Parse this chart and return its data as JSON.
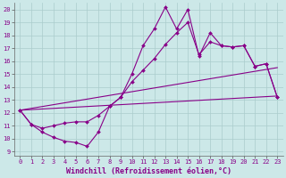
{
  "xlabel": "Windchill (Refroidissement éolien,°C)",
  "bg_color": "#cce8e8",
  "line_color": "#880088",
  "grid_color": "#aacccc",
  "xlim": [
    -0.5,
    23.5
  ],
  "ylim": [
    8.7,
    20.5
  ],
  "xticks": [
    0,
    1,
    2,
    3,
    4,
    5,
    6,
    7,
    8,
    9,
    10,
    11,
    12,
    13,
    14,
    15,
    16,
    17,
    18,
    19,
    20,
    21,
    22,
    23
  ],
  "yticks": [
    9,
    10,
    11,
    12,
    13,
    14,
    15,
    16,
    17,
    18,
    19,
    20
  ],
  "lines": [
    {
      "x": [
        0,
        1,
        2,
        3,
        4,
        5,
        6,
        7,
        8,
        9,
        10,
        11,
        12,
        13,
        14,
        15,
        16,
        17,
        18,
        19,
        20,
        21,
        22,
        23
      ],
      "y": [
        12.2,
        11.1,
        10.5,
        10.1,
        9.8,
        9.7,
        9.4,
        10.5,
        12.5,
        13.2,
        15.0,
        17.2,
        18.5,
        20.2,
        18.5,
        20.0,
        16.4,
        18.2,
        17.2,
        17.1,
        17.2,
        15.6,
        15.8,
        13.2
      ],
      "marker": "D",
      "ms": 2.0,
      "lw": 0.8
    },
    {
      "x": [
        0,
        1,
        2,
        3,
        4,
        5,
        6,
        7,
        8,
        9,
        10,
        11,
        12,
        13,
        14,
        15,
        16,
        17,
        18,
        19,
        20,
        21,
        22,
        23
      ],
      "y": [
        12.2,
        11.1,
        10.8,
        11.0,
        11.2,
        11.3,
        11.3,
        11.8,
        12.5,
        13.2,
        14.4,
        15.3,
        16.2,
        17.3,
        18.2,
        19.0,
        16.5,
        17.5,
        17.2,
        17.1,
        17.2,
        15.6,
        15.8,
        13.2
      ],
      "marker": "D",
      "ms": 2.0,
      "lw": 0.8
    },
    {
      "x": [
        0,
        23
      ],
      "y": [
        12.2,
        15.5
      ],
      "marker": null,
      "ms": 0,
      "lw": 0.8
    },
    {
      "x": [
        0,
        23
      ],
      "y": [
        12.2,
        13.3
      ],
      "marker": null,
      "ms": 0,
      "lw": 0.8
    }
  ],
  "tick_fontsize": 5.0,
  "label_fontsize": 6.0
}
